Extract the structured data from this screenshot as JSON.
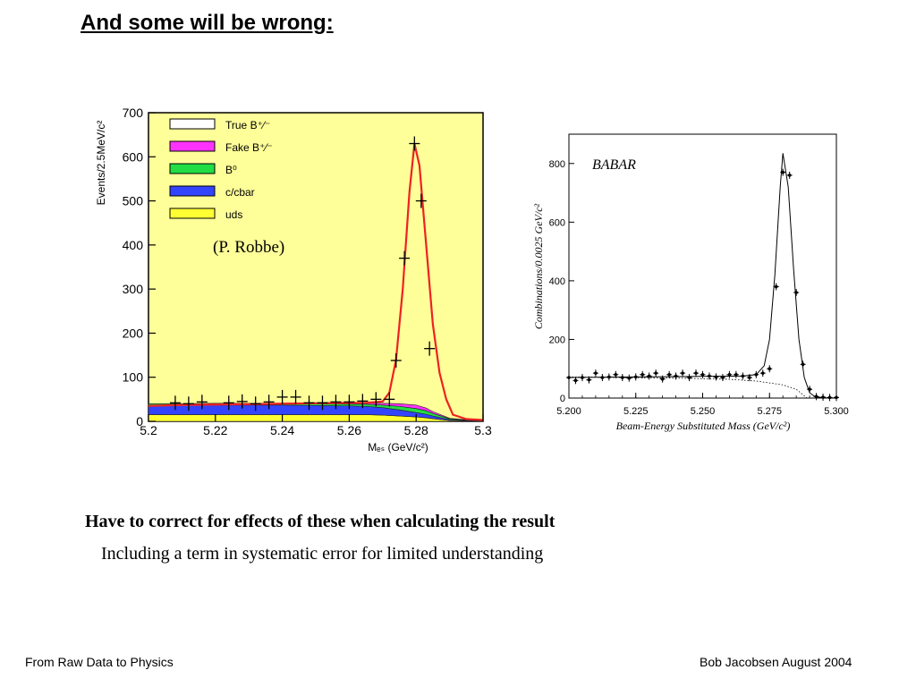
{
  "slide": {
    "title": "And some will be wrong:",
    "bullet_main": "Have to correct for effects of these when calculating the result",
    "bullet_sub": "Including a term in systematic error for limited understanding",
    "footer_left": "From Raw Data to Physics",
    "footer_right": "Bob Jacobsen August 2004"
  },
  "chart_data": [
    {
      "type": "area",
      "ylabel": "Events/2.5MeV/c²",
      "xlabel": "Mₑₛ (GeV/c²)",
      "annotation": "(P. Robbe)",
      "xlim": [
        5.2,
        5.3
      ],
      "ylim": [
        0,
        700
      ],
      "xticks": [
        5.2,
        5.22,
        5.24,
        5.26,
        5.28,
        5.3
      ],
      "xtick_labels": [
        "5.2",
        "5.22",
        "5.24",
        "5.26",
        "5.28",
        "5.3"
      ],
      "yticks": [
        0,
        100,
        200,
        300,
        400,
        500,
        600,
        700
      ],
      "ytick_labels": [
        "0",
        "100",
        "200",
        "300",
        "400",
        "500",
        "600",
        "700"
      ],
      "legend_position": "top-left",
      "legend": [
        {
          "label": "True B⁺⁄⁻",
          "color": "#ffffff"
        },
        {
          "label": "Fake B⁺⁄⁻",
          "color": "#ff33ff"
        },
        {
          "label": "B⁰",
          "color": "#22dd44"
        },
        {
          "label": "c/cbar",
          "color": "#3344ff"
        },
        {
          "label": "uds",
          "color": "#ffff33"
        }
      ],
      "colors": {
        "background": "#ffff99",
        "fit_line": "#ee2222"
      },
      "x": [
        5.2,
        5.21,
        5.22,
        5.23,
        5.24,
        5.25,
        5.26,
        5.265,
        5.27,
        5.275,
        5.28,
        5.283,
        5.285,
        5.29,
        5.3
      ],
      "series": [
        {
          "name": "uds",
          "values": [
            15,
            15,
            15,
            15,
            15,
            15,
            15,
            15,
            14,
            12,
            10,
            8,
            6,
            2,
            0
          ]
        },
        {
          "name": "c/cbar",
          "values": [
            22,
            22,
            22,
            22,
            22,
            21,
            20,
            19,
            17,
            14,
            10,
            8,
            6,
            2,
            0
          ]
        },
        {
          "name": "B⁰",
          "values": [
            3,
            3,
            3,
            3,
            3,
            4,
            4,
            5,
            6,
            8,
            9,
            8,
            6,
            2,
            0
          ]
        },
        {
          "name": "Fake B⁺⁄⁻",
          "values": [
            0,
            0,
            1,
            1,
            1,
            2,
            3,
            3,
            4,
            6,
            8,
            6,
            4,
            1,
            0
          ]
        }
      ],
      "fit_x": [
        5.2,
        5.21,
        5.22,
        5.23,
        5.24,
        5.25,
        5.26,
        5.265,
        5.27,
        5.272,
        5.274,
        5.276,
        5.278,
        5.2795,
        5.281,
        5.283,
        5.285,
        5.287,
        5.289,
        5.291,
        5.295,
        5.3
      ],
      "fit_y": [
        35,
        37,
        38,
        39,
        40,
        41,
        42,
        42,
        45,
        65,
        140,
        300,
        520,
        630,
        580,
        400,
        220,
        110,
        50,
        15,
        5,
        3
      ],
      "points_x": [
        5.208,
        5.212,
        5.216,
        5.224,
        5.228,
        5.232,
        5.236,
        5.24,
        5.244,
        5.248,
        5.252,
        5.256,
        5.26,
        5.264,
        5.268,
        5.272,
        5.274,
        5.2765,
        5.2795,
        5.2815,
        5.284
      ],
      "points_y": [
        42,
        40,
        44,
        42,
        45,
        40,
        44,
        55,
        55,
        42,
        42,
        44,
        44,
        46,
        50,
        50,
        138,
        370,
        630,
        500,
        165
      ]
    },
    {
      "type": "line",
      "ylabel": "Combinations/0.0025 GeV/c²",
      "xlabel": "Beam-Energy Substituted Mass (GeV/c²)",
      "annotation": "BABAR",
      "xlim": [
        5.2,
        5.3
      ],
      "ylim": [
        0,
        900
      ],
      "xticks": [
        5.2,
        5.225,
        5.25,
        5.275,
        5.3
      ],
      "xtick_labels": [
        "5.200",
        "5.225",
        "5.250",
        "5.275",
        "5.300"
      ],
      "yticks": [
        0,
        200,
        400,
        600,
        800
      ],
      "ytick_labels": [
        "0",
        "200",
        "400",
        "600",
        "800"
      ],
      "grid": false,
      "x": [
        5.2,
        5.2025,
        5.205,
        5.2075,
        5.21,
        5.2125,
        5.215,
        5.2175,
        5.22,
        5.2225,
        5.225,
        5.2275,
        5.23,
        5.2325,
        5.235,
        5.2375,
        5.24,
        5.2425,
        5.245,
        5.2475,
        5.25,
        5.2525,
        5.255,
        5.2575,
        5.26,
        5.2625,
        5.265,
        5.2675,
        5.27,
        5.2725,
        5.275,
        5.2775,
        5.28,
        5.2825,
        5.285,
        5.2875,
        5.29,
        5.2925,
        5.295,
        5.2975,
        5.3
      ],
      "series": [
        {
          "values": [
            70,
            60,
            70,
            62,
            85,
            70,
            72,
            80,
            70,
            68,
            72,
            80,
            75,
            85,
            65,
            80,
            75,
            85,
            70,
            85,
            80,
            75,
            72,
            70,
            80,
            80,
            75,
            70,
            80,
            85,
            100,
            380,
            770,
            760,
            360,
            115,
            30,
            5,
            3,
            2,
            2
          ]
        }
      ],
      "fit_x": [
        5.2,
        5.225,
        5.25,
        5.265,
        5.27,
        5.273,
        5.275,
        5.277,
        5.279,
        5.28,
        5.282,
        5.284,
        5.286,
        5.288,
        5.29,
        5.292,
        5.295,
        5.3
      ],
      "fit_y": [
        70,
        72,
        74,
        75,
        80,
        110,
        200,
        420,
        720,
        835,
        720,
        440,
        200,
        70,
        18,
        5,
        1,
        0
      ],
      "background_x": [
        5.2,
        5.22,
        5.24,
        5.26,
        5.27,
        5.28,
        5.285,
        5.289
      ],
      "background_y": [
        72,
        70,
        68,
        64,
        58,
        45,
        30,
        0
      ]
    }
  ]
}
